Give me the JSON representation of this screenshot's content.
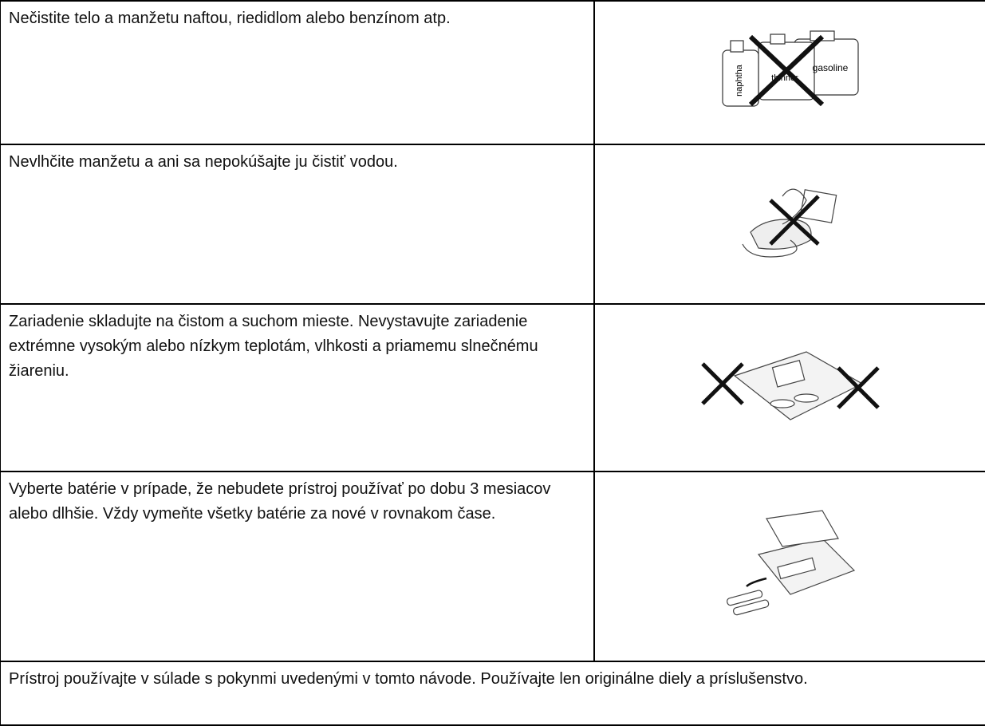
{
  "table": {
    "rows": [
      {
        "text": "Nečistite telo a manžetu naftou, riedidlom alebo benzínom atp.",
        "image_labels": [
          "naphtha",
          "thinner",
          "gasoline"
        ]
      },
      {
        "text": "Nevlhčite manžetu a ani sa nepokúšajte ju čistiť vodou."
      },
      {
        "text": "Zariadenie skladujte na čistom a suchom mieste. Nevystavujte zariadenie extrémne vysokým alebo nízkym teplotám, vlhkosti a priamemu slnečnému žiareniu."
      },
      {
        "text": "Vyberte batérie v prípade, že  nebudete prístroj používať po dobu 3 mesiacov alebo dlhšie. Vždy vymeňte všetky batérie za nové v rovnakom čase."
      }
    ],
    "footer": "Prístroj používajte v súlade s pokynmi uvedenými v tomto návode. Používajte len originálne diely a príslušenstvo."
  }
}
